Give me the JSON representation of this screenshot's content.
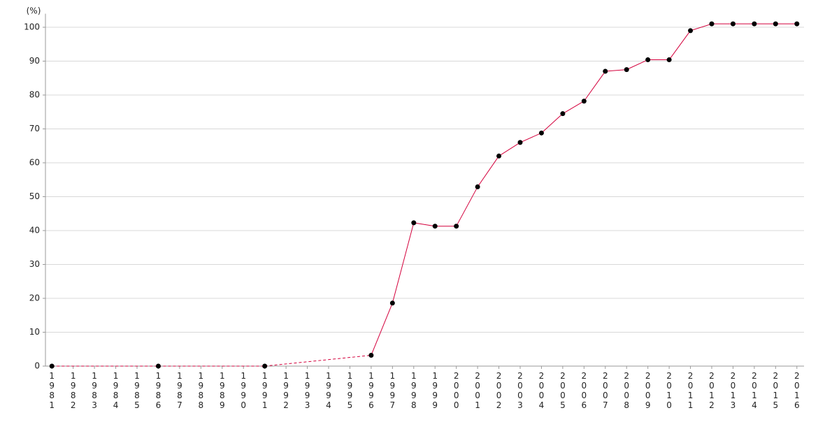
{
  "chart_data": {
    "type": "line",
    "y_unit": "(%)",
    "categories": [
      "1981",
      "1982",
      "1983",
      "1984",
      "1985",
      "1986",
      "1987",
      "1988",
      "1989",
      "1990",
      "1991",
      "1992",
      "1993",
      "1994",
      "1995",
      "1996",
      "1997",
      "1998",
      "1999",
      "2000",
      "2001",
      "2002",
      "2003",
      "2004",
      "2005",
      "2006",
      "2007",
      "2008",
      "2009",
      "2010",
      "2011",
      "2012",
      "2013",
      "2014",
      "2015",
      "2016"
    ],
    "series": [
      {
        "color": "#d4003c",
        "marker_color": "#000000",
        "values": [
          0,
          null,
          null,
          null,
          null,
          0,
          null,
          null,
          null,
          null,
          0,
          null,
          null,
          null,
          null,
          3.2,
          18.6,
          42.3,
          41.3,
          41.3,
          52.9,
          62,
          66,
          68.8,
          74.5,
          78.2,
          87,
          87.5,
          90.4,
          90.4,
          99,
          101,
          101,
          101,
          101,
          101
        ]
      }
    ],
    "ylim": [
      0,
      104
    ],
    "yticks": [
      0,
      10,
      20,
      30,
      40,
      50,
      60,
      70,
      80,
      90,
      100
    ],
    "grid": true
  }
}
